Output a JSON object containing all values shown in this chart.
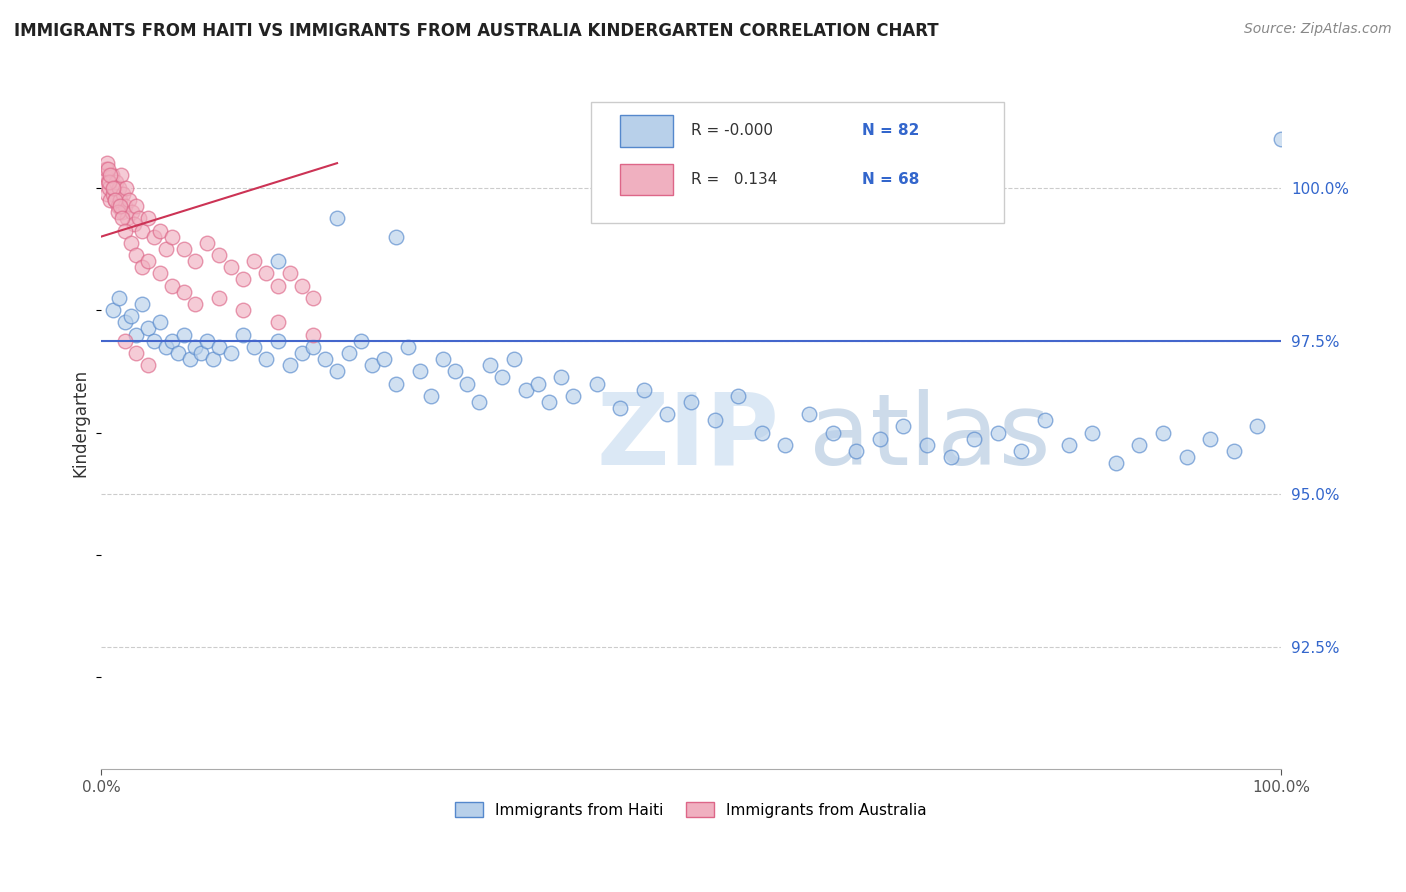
{
  "title": "IMMIGRANTS FROM HAITI VS IMMIGRANTS FROM AUSTRALIA KINDERGARTEN CORRELATION CHART",
  "source": "Source: ZipAtlas.com",
  "ylabel": "Kindergarten",
  "xlim": [
    0,
    100
  ],
  "ylim": [
    90.5,
    101.8
  ],
  "yticks_right": [
    92.5,
    95.0,
    97.5,
    100.0
  ],
  "legend_haiti_R": "-0.000",
  "legend_haiti_N": "82",
  "legend_australia_R": "0.134",
  "legend_australia_N": "68",
  "haiti_color": "#b8d0ea",
  "australia_color": "#f0b0c0",
  "haiti_edge": "#5588cc",
  "australia_edge": "#dd6688",
  "regression_haiti_color": "#4466cc",
  "regression_australia_color": "#cc3355",
  "haiti_reg_y": 97.5,
  "australia_reg_x0": 0,
  "australia_reg_y0": 99.2,
  "australia_reg_x1": 20,
  "australia_reg_y1": 100.4,
  "haiti_x": [
    1.0,
    1.5,
    2.0,
    2.5,
    3.0,
    3.5,
    4.0,
    4.5,
    5.0,
    5.5,
    6.0,
    6.5,
    7.0,
    7.5,
    8.0,
    8.5,
    9.0,
    9.5,
    10.0,
    11.0,
    12.0,
    13.0,
    14.0,
    15.0,
    16.0,
    17.0,
    18.0,
    19.0,
    20.0,
    21.0,
    22.0,
    23.0,
    24.0,
    25.0,
    26.0,
    27.0,
    28.0,
    29.0,
    30.0,
    31.0,
    32.0,
    33.0,
    34.0,
    35.0,
    36.0,
    37.0,
    38.0,
    39.0,
    40.0,
    42.0,
    44.0,
    46.0,
    48.0,
    50.0,
    52.0,
    54.0,
    56.0,
    58.0,
    60.0,
    62.0,
    64.0,
    66.0,
    68.0,
    70.0,
    72.0,
    74.0,
    76.0,
    78.0,
    80.0,
    82.0,
    84.0,
    86.0,
    88.0,
    90.0,
    92.0,
    94.0,
    96.0,
    98.0,
    100.0,
    25.0,
    15.0,
    20.0
  ],
  "haiti_y": [
    98.0,
    98.2,
    97.8,
    97.9,
    97.6,
    98.1,
    97.7,
    97.5,
    97.8,
    97.4,
    97.5,
    97.3,
    97.6,
    97.2,
    97.4,
    97.3,
    97.5,
    97.2,
    97.4,
    97.3,
    97.6,
    97.4,
    97.2,
    97.5,
    97.1,
    97.3,
    97.4,
    97.2,
    97.0,
    97.3,
    97.5,
    97.1,
    97.2,
    96.8,
    97.4,
    97.0,
    96.6,
    97.2,
    97.0,
    96.8,
    96.5,
    97.1,
    96.9,
    97.2,
    96.7,
    96.8,
    96.5,
    96.9,
    96.6,
    96.8,
    96.4,
    96.7,
    96.3,
    96.5,
    96.2,
    96.6,
    96.0,
    95.8,
    96.3,
    96.0,
    95.7,
    95.9,
    96.1,
    95.8,
    95.6,
    95.9,
    96.0,
    95.7,
    96.2,
    95.8,
    96.0,
    95.5,
    95.8,
    96.0,
    95.6,
    95.9,
    95.7,
    96.1,
    100.8,
    99.2,
    98.8,
    99.5
  ],
  "australia_x": [
    0.3,
    0.4,
    0.5,
    0.6,
    0.7,
    0.8,
    0.9,
    1.0,
    1.1,
    1.2,
    1.3,
    1.4,
    1.5,
    1.6,
    1.7,
    1.8,
    1.9,
    2.0,
    2.1,
    2.2,
    2.4,
    2.6,
    2.8,
    3.0,
    3.2,
    3.5,
    4.0,
    4.5,
    5.0,
    5.5,
    6.0,
    7.0,
    8.0,
    9.0,
    10.0,
    11.0,
    12.0,
    13.0,
    14.0,
    15.0,
    16.0,
    17.0,
    18.0,
    0.5,
    0.6,
    0.7,
    0.8,
    1.0,
    1.2,
    1.4,
    1.6,
    1.8,
    2.0,
    2.5,
    3.0,
    3.5,
    4.0,
    5.0,
    6.0,
    7.0,
    8.0,
    10.0,
    12.0,
    15.0,
    18.0,
    2.0,
    3.0,
    4.0
  ],
  "australia_y": [
    100.2,
    100.3,
    99.9,
    100.1,
    100.0,
    99.8,
    100.2,
    99.9,
    100.0,
    99.8,
    100.1,
    99.7,
    100.0,
    99.8,
    100.2,
    99.6,
    99.9,
    99.7,
    100.0,
    99.5,
    99.8,
    99.6,
    99.4,
    99.7,
    99.5,
    99.3,
    99.5,
    99.2,
    99.3,
    99.0,
    99.2,
    99.0,
    98.8,
    99.1,
    98.9,
    98.7,
    98.5,
    98.8,
    98.6,
    98.4,
    98.6,
    98.4,
    98.2,
    100.4,
    100.3,
    100.1,
    100.2,
    100.0,
    99.8,
    99.6,
    99.7,
    99.5,
    99.3,
    99.1,
    98.9,
    98.7,
    98.8,
    98.6,
    98.4,
    98.3,
    98.1,
    98.2,
    98.0,
    97.8,
    97.6,
    97.5,
    97.3,
    97.1
  ]
}
